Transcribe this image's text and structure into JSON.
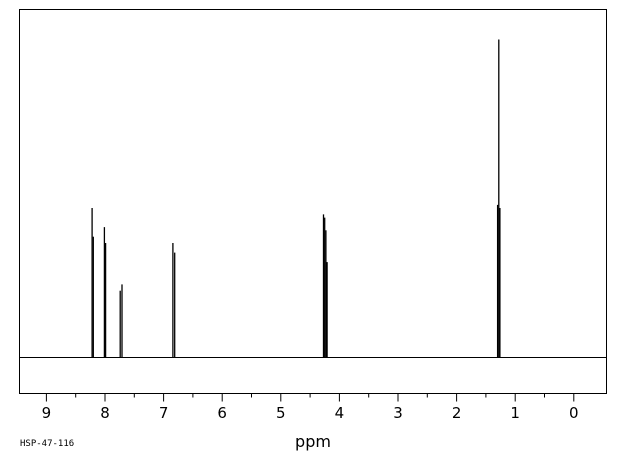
{
  "chart_data": {
    "type": "line",
    "title": "",
    "xlabel": "ppm",
    "ylabel": "",
    "xlim": [
      9.45,
      -0.55
    ],
    "ylim": [
      0,
      1.0
    ],
    "x_reversed": true,
    "grid": false,
    "legend": "none",
    "x_ticks": [
      "9",
      "8",
      "7",
      "6",
      "5",
      "4",
      "3",
      "2",
      "1",
      "0"
    ],
    "sample_code": "HSP-47-116",
    "peaks": [
      {
        "ppm": 8.22,
        "height": 0.47
      },
      {
        "ppm": 8.2,
        "height": 0.38
      },
      {
        "ppm": 8.01,
        "height": 0.41
      },
      {
        "ppm": 7.99,
        "height": 0.36
      },
      {
        "ppm": 7.74,
        "height": 0.21
      },
      {
        "ppm": 7.71,
        "height": 0.23
      },
      {
        "ppm": 6.84,
        "height": 0.36
      },
      {
        "ppm": 6.81,
        "height": 0.33
      },
      {
        "ppm": 4.27,
        "height": 0.45
      },
      {
        "ppm": 4.25,
        "height": 0.44
      },
      {
        "ppm": 4.23,
        "height": 0.4
      },
      {
        "ppm": 4.21,
        "height": 0.3
      },
      {
        "ppm": 1.3,
        "height": 0.48
      },
      {
        "ppm": 1.28,
        "height": 1.0
      },
      {
        "ppm": 1.26,
        "height": 0.47
      }
    ]
  },
  "colors": {
    "line": "#000000",
    "background": "#ffffff"
  }
}
